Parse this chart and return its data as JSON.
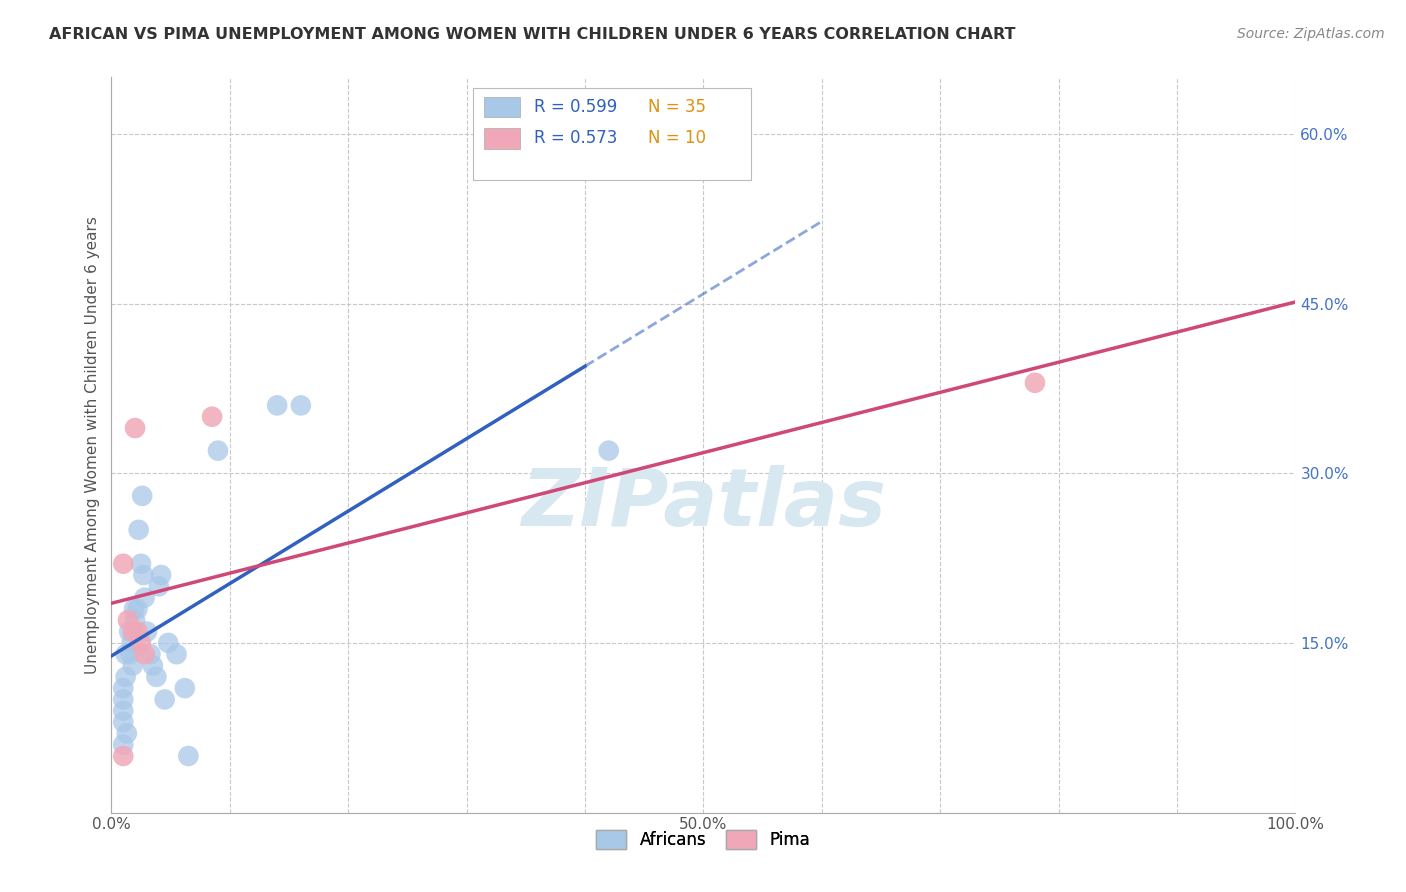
{
  "title": "AFRICAN VS PIMA UNEMPLOYMENT AMONG WOMEN WITH CHILDREN UNDER 6 YEARS CORRELATION CHART",
  "source": "Source: ZipAtlas.com",
  "ylabel": "Unemployment Among Women with Children Under 6 years",
  "xlim": [
    0.0,
    1.0
  ],
  "ylim": [
    0.0,
    0.65
  ],
  "xtick_major": [
    0.0,
    0.5,
    1.0
  ],
  "xtick_major_labels": [
    "0.0%",
    "50.0%",
    "100.0%"
  ],
  "xtick_minor": [
    0.1,
    0.2,
    0.3,
    0.4,
    0.6,
    0.7,
    0.8,
    0.9
  ],
  "yticks": [
    0.0,
    0.15,
    0.3,
    0.45,
    0.6
  ],
  "ytick_labels": [
    "",
    "15.0%",
    "30.0%",
    "45.0%",
    "60.0%"
  ],
  "africans_x": [
    0.01,
    0.01,
    0.01,
    0.01,
    0.01,
    0.012,
    0.012,
    0.013,
    0.015,
    0.016,
    0.017,
    0.018,
    0.019,
    0.02,
    0.022,
    0.023,
    0.025,
    0.026,
    0.027,
    0.028,
    0.03,
    0.033,
    0.035,
    0.038,
    0.04,
    0.042,
    0.045,
    0.048,
    0.055,
    0.062,
    0.065,
    0.09,
    0.14,
    0.16,
    0.42
  ],
  "africans_y": [
    0.06,
    0.08,
    0.09,
    0.1,
    0.11,
    0.12,
    0.14,
    0.07,
    0.16,
    0.14,
    0.15,
    0.13,
    0.18,
    0.17,
    0.18,
    0.25,
    0.22,
    0.28,
    0.21,
    0.19,
    0.16,
    0.14,
    0.13,
    0.12,
    0.2,
    0.21,
    0.1,
    0.15,
    0.14,
    0.11,
    0.05,
    0.32,
    0.36,
    0.36,
    0.32
  ],
  "pima_x": [
    0.01,
    0.01,
    0.014,
    0.018,
    0.02,
    0.022,
    0.025,
    0.028,
    0.085,
    0.78
  ],
  "pima_y": [
    0.05,
    0.22,
    0.17,
    0.16,
    0.34,
    0.16,
    0.15,
    0.14,
    0.35,
    0.38
  ],
  "africans_R": 0.599,
  "africans_N": 35,
  "pima_R": 0.573,
  "pima_N": 10,
  "blue_scatter_color": "#a8c8e8",
  "blue_line_color": "#3060c0",
  "pink_scatter_color": "#f0a8b8",
  "pink_line_color": "#d04878",
  "watermark_color": "#d8e8f0",
  "watermark_text": "ZIPatlas",
  "background_color": "#ffffff",
  "grid_color": "#c8c8c8",
  "title_color": "#333333",
  "ytick_color": "#4472c4",
  "source_color": "#888888"
}
